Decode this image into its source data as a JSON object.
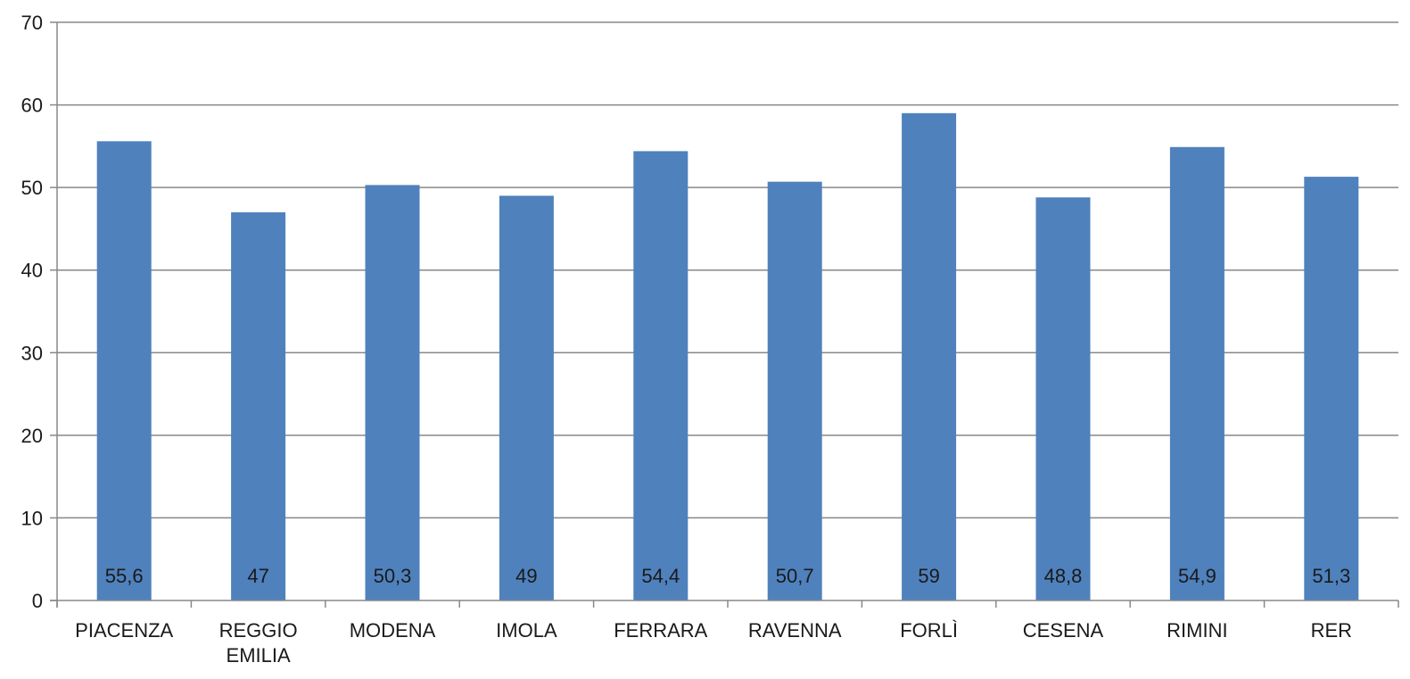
{
  "chart_data": {
    "type": "bar",
    "title": "",
    "xlabel": "",
    "ylabel": "",
    "categories": [
      "PIACENZA",
      "REGGIO EMILIA",
      "MODENA",
      "IMOLA",
      "FERRARA",
      "RAVENNA",
      "FORLÌ",
      "CESENA",
      "RIMINI",
      "RER"
    ],
    "values": [
      55.6,
      47,
      50.3,
      49,
      54.4,
      50.7,
      59,
      48.8,
      54.9,
      51.3
    ],
    "data_labels": [
      "55,6",
      "47",
      "50,3",
      "49",
      "54,4",
      "50,7",
      "59",
      "48,8",
      "54,9",
      "51,3"
    ],
    "yticks": [
      "0",
      "10",
      "20",
      "30",
      "40",
      "50",
      "60",
      "70"
    ],
    "ylim": [
      0,
      70
    ],
    "grid": true,
    "legend": "none",
    "colors": {
      "bar": "#4f81bd",
      "grid": "#888888",
      "axis": "#888888",
      "text": "#1a1a1a"
    }
  }
}
